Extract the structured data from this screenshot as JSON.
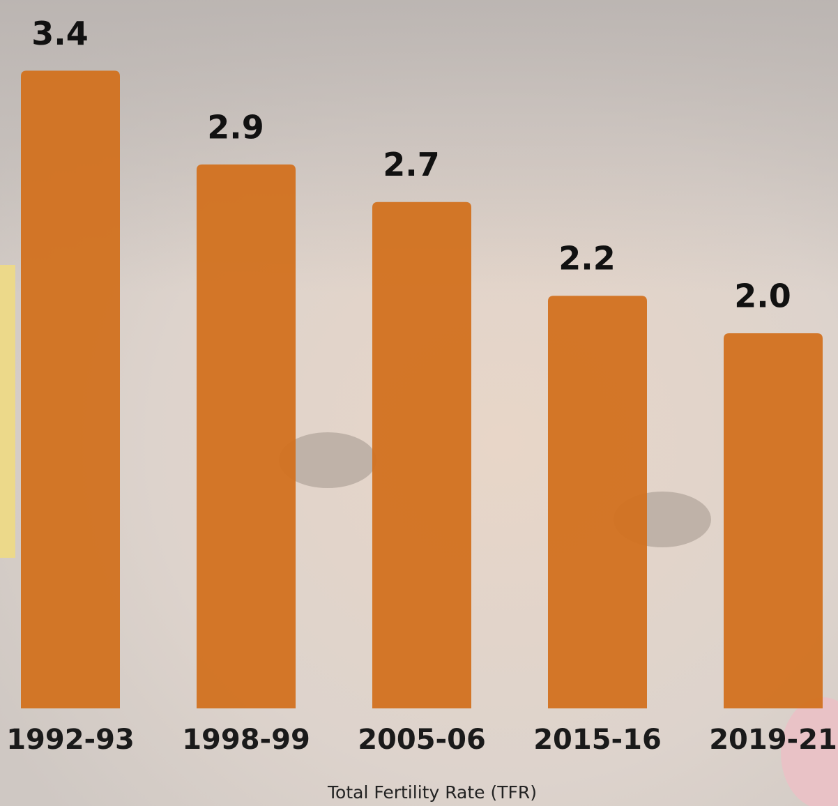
{
  "chart_data": {
    "type": "bar",
    "categories": [
      "1992-93",
      "1998-99",
      "2005-06",
      "2015-16",
      "2019-21"
    ],
    "values": [
      3.4,
      2.9,
      2.7,
      2.2,
      2.0
    ],
    "value_labels": [
      "3.4",
      "2.9",
      "2.7",
      "2.2",
      "2.0"
    ],
    "color": "#d2711f",
    "x_label": "Total Fertility Rate (TFR)"
  }
}
